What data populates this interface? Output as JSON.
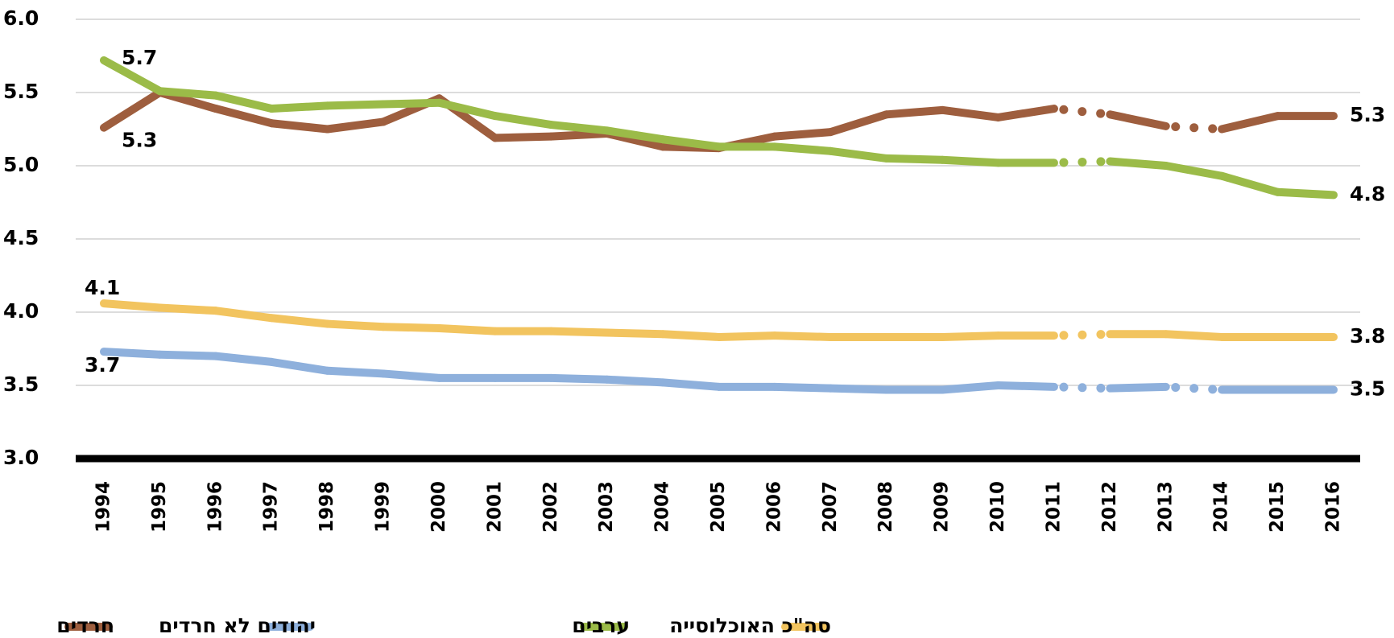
{
  "chart_data": {
    "type": "line",
    "categories": [
      "1994",
      "1995",
      "1996",
      "1997",
      "1998",
      "1999",
      "2000",
      "2001",
      "2002",
      "2003",
      "2004",
      "2005",
      "2006",
      "2007",
      "2008",
      "2009",
      "2010",
      "2011",
      "2012",
      "2013",
      "2014",
      "2015",
      "2016"
    ],
    "ylim": [
      3.0,
      6.0
    ],
    "yticks": [
      {
        "value": 3.0,
        "label": "3.0"
      },
      {
        "value": 3.5,
        "label": "3.5"
      },
      {
        "value": 4.0,
        "label": "4.0"
      },
      {
        "value": 4.5,
        "label": "4.5"
      },
      {
        "value": 5.0,
        "label": "5.0"
      },
      {
        "value": 5.5,
        "label": "5.5"
      },
      {
        "value": 6.0,
        "label": "6.0"
      }
    ],
    "grid": true,
    "legend": "bottom",
    "series": [
      {
        "name": "חרדים",
        "color": "#9E5E3E",
        "values": [
          5.26,
          5.5,
          5.39,
          5.29,
          5.25,
          5.3,
          5.46,
          5.19,
          5.2,
          5.22,
          5.13,
          5.12,
          5.2,
          5.23,
          5.35,
          5.38,
          5.33,
          5.39,
          5.35,
          5.27,
          5.25,
          5.34,
          5.34
        ],
        "value_labels": [
          "5.3",
          null,
          null,
          null,
          null,
          null,
          null,
          null,
          null,
          null,
          null,
          null,
          null,
          null,
          null,
          null,
          null,
          null,
          null,
          null,
          null,
          null,
          "5.3"
        ],
        "dotted_segments": [
          [
            17,
            18
          ],
          [
            19,
            20
          ]
        ]
      },
      {
        "name": "יהודים לא חרדים",
        "color": "#8EB0DC",
        "values": [
          3.73,
          3.71,
          3.7,
          3.66,
          3.6,
          3.58,
          3.55,
          3.55,
          3.55,
          3.54,
          3.52,
          3.49,
          3.49,
          3.48,
          3.47,
          3.47,
          3.5,
          3.49,
          3.48,
          3.49,
          3.47,
          3.47,
          3.47
        ],
        "value_labels": [
          "3.7",
          null,
          null,
          null,
          null,
          null,
          null,
          null,
          null,
          null,
          null,
          null,
          null,
          null,
          null,
          null,
          null,
          null,
          null,
          null,
          null,
          null,
          "3.5"
        ],
        "dotted_segments": [
          [
            17,
            18
          ],
          [
            19,
            20
          ]
        ]
      },
      {
        "name": "ערבים",
        "color": "#9BBB48",
        "values": [
          5.72,
          5.51,
          5.48,
          5.39,
          5.41,
          5.42,
          5.43,
          5.34,
          5.28,
          5.24,
          5.18,
          5.13,
          5.13,
          5.1,
          5.05,
          5.04,
          5.02,
          5.02,
          5.03,
          5.0,
          4.93,
          4.82,
          4.8
        ],
        "value_labels": [
          "5.7",
          null,
          null,
          null,
          null,
          null,
          null,
          null,
          null,
          null,
          null,
          null,
          null,
          null,
          null,
          null,
          null,
          null,
          null,
          null,
          null,
          null,
          "4.8"
        ],
        "dotted_segments": [
          [
            17,
            18
          ]
        ]
      },
      {
        "name": "סה\"כ האוכלוסייה",
        "color": "#F2C45F",
        "values": [
          4.06,
          4.03,
          4.01,
          3.96,
          3.92,
          3.9,
          3.89,
          3.87,
          3.87,
          3.86,
          3.85,
          3.83,
          3.84,
          3.83,
          3.83,
          3.83,
          3.84,
          3.84,
          3.85,
          3.85,
          3.83,
          3.83,
          3.83
        ],
        "value_labels": [
          "4.1",
          null,
          null,
          null,
          null,
          null,
          null,
          null,
          null,
          null,
          null,
          null,
          null,
          null,
          null,
          null,
          null,
          null,
          null,
          null,
          null,
          null,
          "3.8"
        ],
        "dotted_segments": [
          [
            17,
            18
          ]
        ]
      }
    ]
  }
}
